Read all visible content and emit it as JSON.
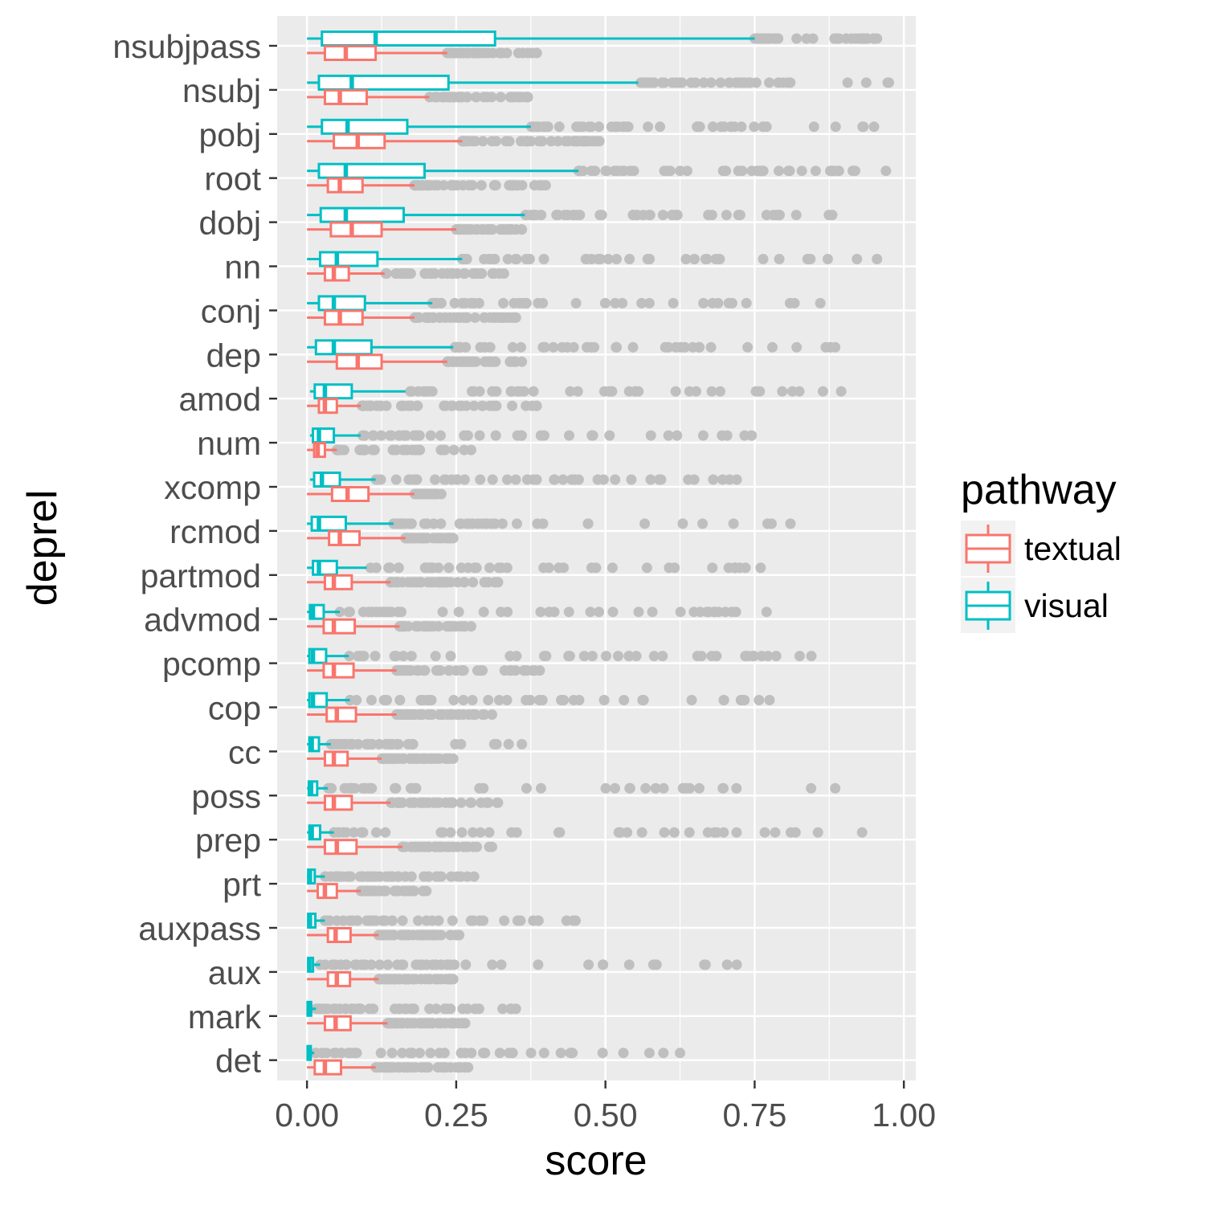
{
  "chart_data": {
    "type": "boxplot",
    "orientation": "horizontal",
    "xlabel": "score",
    "ylabel": "deprel",
    "xlim": [
      -0.05,
      1.02
    ],
    "x_ticks": [
      0.0,
      0.25,
      0.5,
      0.75,
      1.0
    ],
    "x_tick_labels": [
      "0.00",
      "0.25",
      "0.50",
      "0.75",
      "1.00"
    ],
    "grid": true,
    "legend": {
      "title": "pathway",
      "position": "right",
      "entries": [
        "textual",
        "visual"
      ]
    },
    "colors": {
      "textual": "#f8766d",
      "visual": "#00bfc4",
      "outlier": "#bfbfbf",
      "panel": "#ebebeb",
      "grid": "#ffffff"
    },
    "categories": [
      "nsubjpass",
      "nsubj",
      "pobj",
      "root",
      "dobj",
      "nn",
      "conj",
      "dep",
      "amod",
      "num",
      "xcomp",
      "rcmod",
      "partmod",
      "advmod",
      "pcomp",
      "cop",
      "cc",
      "poss",
      "prep",
      "prt",
      "auxpass",
      "aux",
      "mark",
      "det"
    ],
    "series": [
      {
        "name": "visual",
        "stats": [
          {
            "wmin": 0.0,
            "q1": 0.025,
            "med": 0.115,
            "q3": 0.315,
            "wmax": 0.75
          },
          {
            "wmin": 0.0,
            "q1": 0.02,
            "med": 0.075,
            "q3": 0.237,
            "wmax": 0.555
          },
          {
            "wmin": 0.0,
            "q1": 0.025,
            "med": 0.068,
            "q3": 0.168,
            "wmax": 0.375
          },
          {
            "wmin": 0.0,
            "q1": 0.02,
            "med": 0.065,
            "q3": 0.197,
            "wmax": 0.455
          },
          {
            "wmin": 0.0,
            "q1": 0.023,
            "med": 0.065,
            "q3": 0.162,
            "wmax": 0.365
          },
          {
            "wmin": 0.0,
            "q1": 0.022,
            "med": 0.05,
            "q3": 0.118,
            "wmax": 0.26
          },
          {
            "wmin": 0.0,
            "q1": 0.02,
            "med": 0.045,
            "q3": 0.097,
            "wmax": 0.21
          },
          {
            "wmin": 0.0,
            "q1": 0.015,
            "med": 0.045,
            "q3": 0.108,
            "wmax": 0.245
          },
          {
            "wmin": 0.005,
            "q1": 0.013,
            "med": 0.03,
            "q3": 0.075,
            "wmax": 0.165
          },
          {
            "wmin": 0.005,
            "q1": 0.01,
            "med": 0.02,
            "q3": 0.045,
            "wmax": 0.09
          },
          {
            "wmin": 0.005,
            "q1": 0.012,
            "med": 0.025,
            "q3": 0.055,
            "wmax": 0.115
          },
          {
            "wmin": 0.0,
            "q1": 0.008,
            "med": 0.02,
            "q3": 0.065,
            "wmax": 0.145
          },
          {
            "wmin": 0.0,
            "q1": 0.01,
            "med": 0.02,
            "q3": 0.05,
            "wmax": 0.1
          },
          {
            "wmin": 0.0,
            "q1": 0.005,
            "med": 0.01,
            "q3": 0.028,
            "wmax": 0.055
          },
          {
            "wmin": 0.0,
            "q1": 0.004,
            "med": 0.01,
            "q3": 0.032,
            "wmax": 0.07
          },
          {
            "wmin": 0.0,
            "q1": 0.004,
            "med": 0.01,
            "q3": 0.033,
            "wmax": 0.072
          },
          {
            "wmin": 0.0,
            "q1": 0.004,
            "med": 0.008,
            "q3": 0.02,
            "wmax": 0.04
          },
          {
            "wmin": 0.0,
            "q1": 0.003,
            "med": 0.007,
            "q3": 0.017,
            "wmax": 0.035
          },
          {
            "wmin": 0.0,
            "q1": 0.004,
            "med": 0.008,
            "q3": 0.022,
            "wmax": 0.045
          },
          {
            "wmin": 0.0,
            "q1": 0.002,
            "med": 0.005,
            "q3": 0.013,
            "wmax": 0.03
          },
          {
            "wmin": 0.0,
            "q1": 0.002,
            "med": 0.005,
            "q3": 0.014,
            "wmax": 0.03
          },
          {
            "wmin": 0.0,
            "q1": 0.002,
            "med": 0.004,
            "q3": 0.01,
            "wmax": 0.022
          },
          {
            "wmin": 0.0,
            "q1": 0.001,
            "med": 0.003,
            "q3": 0.007,
            "wmax": 0.015
          },
          {
            "wmin": 0.0,
            "q1": 0.001,
            "med": 0.003,
            "q3": 0.006,
            "wmax": 0.012
          }
        ],
        "outlier_range": [
          [
            0.75,
            0.955
          ],
          [
            0.555,
            0.975
          ],
          [
            0.375,
            0.95
          ],
          [
            0.455,
            0.97
          ],
          [
            0.365,
            0.88
          ],
          [
            0.26,
            0.955
          ],
          [
            0.21,
            0.86
          ],
          [
            0.245,
            0.885
          ],
          [
            0.165,
            0.895
          ],
          [
            0.09,
            0.745
          ],
          [
            0.115,
            0.72
          ],
          [
            0.145,
            0.81
          ],
          [
            0.1,
            0.76
          ],
          [
            0.055,
            0.77
          ],
          [
            0.07,
            0.845
          ],
          [
            0.072,
            0.775
          ],
          [
            0.04,
            0.36
          ],
          [
            0.035,
            0.885
          ],
          [
            0.045,
            0.93
          ],
          [
            0.03,
            0.28
          ],
          [
            0.03,
            0.45
          ],
          [
            0.022,
            0.72
          ],
          [
            0.015,
            0.35
          ],
          [
            0.012,
            0.625
          ]
        ]
      },
      {
        "name": "textual",
        "stats": [
          {
            "wmin": 0.0,
            "q1": 0.03,
            "med": 0.065,
            "q3": 0.115,
            "wmax": 0.235
          },
          {
            "wmin": 0.0,
            "q1": 0.03,
            "med": 0.055,
            "q3": 0.1,
            "wmax": 0.205
          },
          {
            "wmin": 0.0,
            "q1": 0.045,
            "med": 0.085,
            "q3": 0.13,
            "wmax": 0.26
          },
          {
            "wmin": 0.0,
            "q1": 0.035,
            "med": 0.055,
            "q3": 0.093,
            "wmax": 0.18
          },
          {
            "wmin": 0.0,
            "q1": 0.04,
            "med": 0.075,
            "q3": 0.125,
            "wmax": 0.25
          },
          {
            "wmin": 0.0,
            "q1": 0.03,
            "med": 0.045,
            "q3": 0.07,
            "wmax": 0.13
          },
          {
            "wmin": 0.0,
            "q1": 0.03,
            "med": 0.055,
            "q3": 0.093,
            "wmax": 0.18
          },
          {
            "wmin": 0.0,
            "q1": 0.05,
            "med": 0.085,
            "q3": 0.125,
            "wmax": 0.235
          },
          {
            "wmin": 0.0,
            "q1": 0.02,
            "med": 0.03,
            "q3": 0.05,
            "wmax": 0.09
          },
          {
            "wmin": 0.0,
            "q1": 0.012,
            "med": 0.018,
            "q3": 0.03,
            "wmax": 0.05
          },
          {
            "wmin": 0.0,
            "q1": 0.042,
            "med": 0.068,
            "q3": 0.103,
            "wmax": 0.18
          },
          {
            "wmin": 0.0,
            "q1": 0.037,
            "med": 0.055,
            "q3": 0.088,
            "wmax": 0.165
          },
          {
            "wmin": 0.0,
            "q1": 0.03,
            "med": 0.045,
            "q3": 0.075,
            "wmax": 0.14
          },
          {
            "wmin": 0.0,
            "q1": 0.028,
            "med": 0.045,
            "q3": 0.08,
            "wmax": 0.155
          },
          {
            "wmin": 0.0,
            "q1": 0.028,
            "med": 0.045,
            "q3": 0.078,
            "wmax": 0.15
          },
          {
            "wmin": 0.0,
            "q1": 0.033,
            "med": 0.05,
            "q3": 0.082,
            "wmax": 0.15
          },
          {
            "wmin": 0.0,
            "q1": 0.03,
            "med": 0.045,
            "q3": 0.068,
            "wmax": 0.125
          },
          {
            "wmin": 0.0,
            "q1": 0.03,
            "med": 0.045,
            "q3": 0.075,
            "wmax": 0.14
          },
          {
            "wmin": 0.0,
            "q1": 0.03,
            "med": 0.05,
            "q3": 0.083,
            "wmax": 0.16
          },
          {
            "wmin": 0.0,
            "q1": 0.018,
            "med": 0.03,
            "q3": 0.05,
            "wmax": 0.09
          },
          {
            "wmin": 0.0,
            "q1": 0.035,
            "med": 0.048,
            "q3": 0.073,
            "wmax": 0.12
          },
          {
            "wmin": 0.0,
            "q1": 0.035,
            "med": 0.05,
            "q3": 0.072,
            "wmax": 0.12
          },
          {
            "wmin": 0.0,
            "q1": 0.03,
            "med": 0.048,
            "q3": 0.073,
            "wmax": 0.135
          },
          {
            "wmin": 0.0,
            "q1": 0.013,
            "med": 0.03,
            "q3": 0.057,
            "wmax": 0.115
          }
        ],
        "outlier_range": [
          [
            0.235,
            0.385
          ],
          [
            0.205,
            0.37
          ],
          [
            0.26,
            0.49
          ],
          [
            0.18,
            0.4
          ],
          [
            0.25,
            0.36
          ],
          [
            0.13,
            0.33
          ],
          [
            0.18,
            0.35
          ],
          [
            0.235,
            0.36
          ],
          [
            0.09,
            0.385
          ],
          [
            0.05,
            0.275
          ],
          [
            0.18,
            0.225
          ],
          [
            0.165,
            0.245
          ],
          [
            0.14,
            0.32
          ],
          [
            0.155,
            0.275
          ],
          [
            0.15,
            0.39
          ],
          [
            0.15,
            0.31
          ],
          [
            0.125,
            0.245
          ],
          [
            0.14,
            0.32
          ],
          [
            0.16,
            0.31
          ],
          [
            0.09,
            0.2
          ],
          [
            0.12,
            0.255
          ],
          [
            0.12,
            0.245
          ],
          [
            0.135,
            0.265
          ],
          [
            0.115,
            0.27
          ]
        ]
      }
    ]
  }
}
